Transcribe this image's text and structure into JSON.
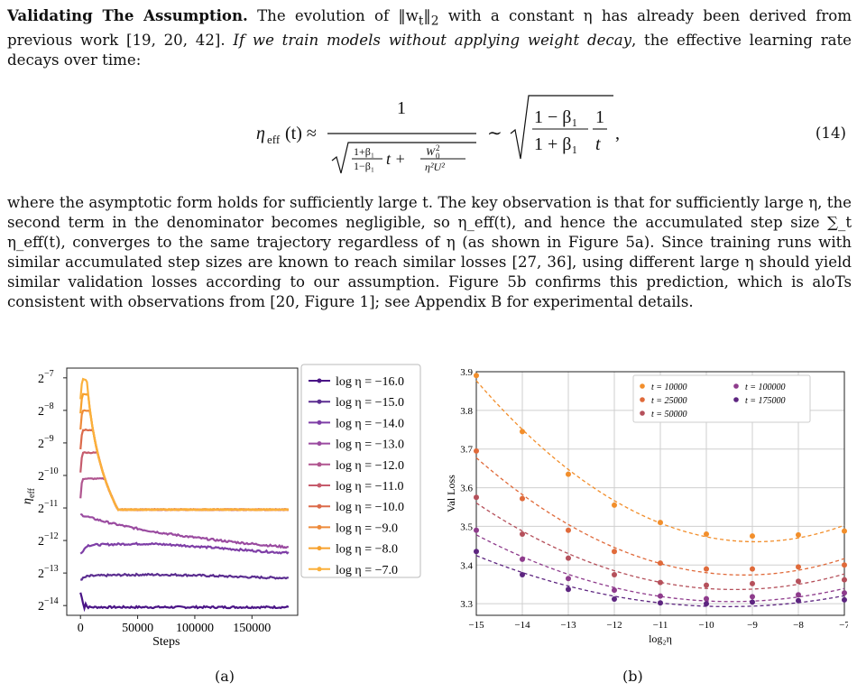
{
  "paragraph1": {
    "lead": "Validating The Assumption.",
    "text_a": " The evolution of ‖w",
    "sub_t": "t",
    "text_b": "‖",
    "sub_2": "2",
    "text_c": " with a constant η has already been derived from previous work [19, 20, 42]. ",
    "italic": "If we train models without applying weight decay",
    "text_d": ", the effective learning rate decays over time:"
  },
  "equation": {
    "lhs": "η",
    "lhs_sub": "eff",
    "lhs_arg": "(t) ≈",
    "numerator": "1",
    "den_frac_num": "1+β₁",
    "den_frac_den": "1−β₁",
    "den_t": "t +",
    "den_w_num": "W",
    "den_w_sub": "0",
    "den_w_sup": "2",
    "den_w_den": "η²U²",
    "sim": "∼",
    "rhs_num": "1 − β₁",
    "rhs_den": "1 + β₁",
    "rhs_one": "1",
    "rhs_t": "t",
    "comma": ",",
    "number": "(14)"
  },
  "paragraph2": {
    "text": "where the asymptotic form holds for sufficiently large t. The key observation is that for sufficiently large η, the second term in the denominator becomes negligible, so η_eff(t), and hence the accumulated step size ∑_t η_eff(t), converges to the same trajectory regardless of η (as shown in Figure 5a). Since training runs with similar accumulated step sizes are known to reach similar losses [27, 36], using different large η should yield similar validation losses according to our assumption. Figure 5b confirms this prediction, which is aloTs consistent with observations from [20, Figure 1]; see Appendix B for experimental details."
  },
  "figure_a": {
    "caption": "(a)",
    "chart_data": {
      "type": "line",
      "xlabel": "Steps",
      "ylabel": "η_eff",
      "y_scale": "log2",
      "xlim": [
        -12000,
        190000
      ],
      "ylim_log2": [
        -14.3,
        -6.7
      ],
      "x_ticks": [
        0,
        50000,
        100000,
        150000
      ],
      "x_tick_labels": [
        "0",
        "50000",
        "100000",
        "150000"
      ],
      "y_ticks_log2": [
        -14,
        -13,
        -12,
        -11,
        -10,
        -9,
        -8,
        -7
      ],
      "y_tick_base": "2",
      "y_tick_exponents": [
        "−14",
        "−13",
        "−12",
        "−11",
        "−10",
        "−9",
        "−8",
        "−7"
      ],
      "grid": false,
      "legend": "right, outside",
      "legend_prefix": "log",
      "legend_var": "η = ",
      "series": [
        {
          "label_value": "−16.0",
          "color": "#4a1486",
          "start": -13.6,
          "plateau": -14.05,
          "lr": -16
        },
        {
          "label_value": "−15.0",
          "color": "#5b2d90",
          "start": -13.2,
          "plateau": -13.1,
          "lr": -15
        },
        {
          "label_value": "−14.0",
          "color": "#7e3ea6",
          "start": -12.4,
          "plateau": -12.15,
          "lr": -14
        },
        {
          "label_value": "−13.0",
          "color": "#9a4ba0",
          "start": -11.2,
          "plateau": -11.25,
          "lr": -13
        },
        {
          "label_value": "−12.0",
          "color": "#b0558f",
          "start": -10.1,
          "plateau": -11.0,
          "lr": -12
        },
        {
          "label_value": "−11.0",
          "color": "#c65b6c",
          "start": -9.3,
          "plateau": -11.0,
          "lr": -11
        },
        {
          "label_value": "−10.0",
          "color": "#dc6a4a",
          "start": -8.6,
          "plateau": -11.0,
          "lr": -10
        },
        {
          "label_value": "−9.0",
          "color": "#ee8a3a",
          "start": -8.0,
          "plateau": -11.0,
          "lr": -9
        },
        {
          "label_value": "−8.0",
          "color": "#f7a12c",
          "start": -7.5,
          "plateau": -11.0,
          "lr": -8
        },
        {
          "label_value": "−7.0",
          "color": "#fbb03b",
          "start": -7.05,
          "plateau": -11.0,
          "lr": -7
        }
      ]
    }
  },
  "figure_b": {
    "caption": "(b)",
    "chart_data": {
      "type": "scatter",
      "xlabel": "log₂η",
      "ylabel": "Val Loss",
      "xlim": [
        -15,
        -7
      ],
      "ylim": [
        3.27,
        3.9
      ],
      "x_ticks": [
        -15,
        -14,
        -13,
        -12,
        -11,
        -10,
        -9,
        -8,
        -7
      ],
      "x_tick_labels": [
        "−15",
        "−14",
        "−13",
        "−12",
        "−11",
        "−10",
        "−9",
        "−8",
        "−7"
      ],
      "y_ticks": [
        3.3,
        3.4,
        3.5,
        3.6,
        3.7,
        3.8,
        3.9
      ],
      "y_tick_labels": [
        "3.3",
        "3.4",
        "3.5",
        "3.6",
        "3.7",
        "3.8",
        "3.9"
      ],
      "grid": true,
      "legend": "top-right",
      "x": [
        -15,
        -14,
        -13,
        -12,
        -11,
        -10,
        -9,
        -8,
        -7
      ],
      "series": [
        {
          "name": "t = 10000",
          "color": "#f28e2b",
          "values": [
            3.89,
            3.745,
            3.635,
            3.555,
            3.51,
            3.48,
            3.475,
            3.478,
            3.488
          ]
        },
        {
          "name": "t = 25000",
          "color": "#e06a3a",
          "values": [
            3.695,
            3.572,
            3.49,
            3.435,
            3.405,
            3.39,
            3.39,
            3.395,
            3.4
          ]
        },
        {
          "name": "t = 50000",
          "color": "#b5505b",
          "values": [
            3.575,
            3.48,
            3.418,
            3.375,
            3.355,
            3.348,
            3.352,
            3.358,
            3.362
          ]
        },
        {
          "name": "t = 100000",
          "color": "#8e3b8c",
          "values": [
            3.49,
            3.415,
            3.365,
            3.335,
            3.32,
            3.313,
            3.318,
            3.323,
            3.328
          ]
        },
        {
          "name": "t = 175000",
          "color": "#5d2580",
          "values": [
            3.435,
            3.375,
            3.337,
            3.312,
            3.302,
            3.3,
            3.304,
            3.308,
            3.31
          ]
        }
      ]
    }
  }
}
